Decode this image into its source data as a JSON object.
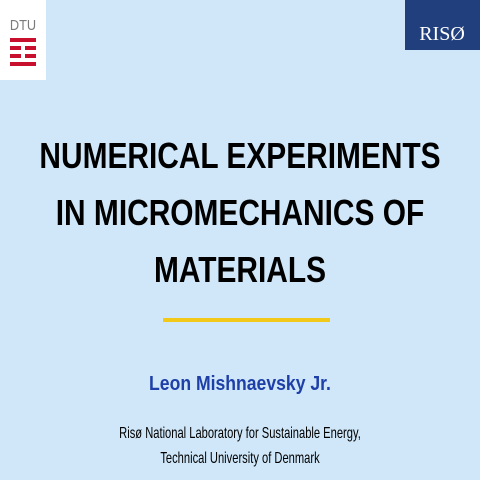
{
  "logos": {
    "left": "DTU",
    "right": "RISØ"
  },
  "title": {
    "lines": [
      "NUMERICAL EXPERIMENTS",
      "IN MICROMECHANICS OF",
      "MATERIALS"
    ]
  },
  "author": "Leon Mishnaevsky Jr.",
  "affiliation": {
    "lines": [
      "Risø National Laboratory for Sustainable Energy,",
      "Technical University of Denmark"
    ]
  }
}
